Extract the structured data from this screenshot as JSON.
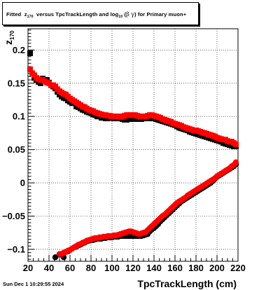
{
  "title": {
    "prefix": "Fitted",
    "sym": "z",
    "sub": "170",
    "middle": "versus TpcTrackLength and log",
    "logsub": "10",
    "paren_open": "(",
    "beta": "β",
    "gamma": "γ",
    "paren_close": ")",
    "suffix": "for Primary muon+"
  },
  "footer": "Sun Dec  1 10:29:55 2024",
  "axis_titles": {
    "x": "TpcTrackLength (cm)",
    "y_sym": "z",
    "y_sub": "170"
  },
  "chart_data": {
    "type": "scatter",
    "title": "Fitted z170 versus TpcTrackLength and log10(βγ) for Primary muon+",
    "xlabel": "TpcTrackLength (cm)",
    "ylabel": "z170",
    "xlim": [
      20,
      220
    ],
    "ylim": [
      -0.118,
      0.232
    ],
    "grid": true,
    "xticks": [
      20,
      40,
      60,
      80,
      100,
      120,
      140,
      160,
      180,
      200,
      220
    ],
    "xtick_labels": [
      "20",
      "40",
      "60",
      "80",
      "100",
      "120",
      "140",
      "160",
      "180",
      "200",
      "220"
    ],
    "yticks": [
      -0.1,
      -0.05,
      0,
      0.05,
      0.1,
      0.15,
      0.2
    ],
    "ytick_labels": [
      "−0.1",
      "−0.05",
      "0",
      "0.05",
      "0.1",
      "0.15",
      "0.2"
    ],
    "colors": {
      "black_series": "#000000",
      "red_series": "#ff0000"
    },
    "series": [
      {
        "marker": "square",
        "color": "#000000",
        "x": [
          22,
          24,
          26,
          28,
          30,
          32,
          34,
          36,
          38,
          40,
          42,
          44,
          46,
          48,
          50,
          52,
          54,
          56,
          58,
          60,
          62,
          64,
          66,
          68,
          70,
          72,
          74,
          76,
          78,
          80,
          82,
          84,
          86,
          88,
          90,
          92,
          94,
          96,
          98,
          100,
          102,
          104,
          106,
          108,
          110,
          112,
          114,
          116,
          118,
          120,
          122,
          124,
          126,
          128,
          130,
          132,
          134,
          136,
          138,
          140,
          142,
          144,
          146,
          148,
          150,
          152,
          154,
          156,
          158,
          160,
          162,
          164,
          166,
          168,
          170,
          172,
          174,
          176,
          178,
          180,
          182,
          184,
          186,
          188,
          190,
          192,
          194,
          196,
          198,
          200,
          202,
          204,
          206,
          208,
          210,
          212,
          214,
          216,
          218
        ],
        "y": [
          0.195,
          0.165,
          0.158,
          0.155,
          0.152,
          0.15,
          0.157,
          0.155,
          0.155,
          0.151,
          0.147,
          0.145,
          0.142,
          0.137,
          0.133,
          0.13,
          0.128,
          0.127,
          0.124,
          0.122,
          0.12,
          0.12,
          0.115,
          0.114,
          0.112,
          0.11,
          0.109,
          0.107,
          0.106,
          0.105,
          0.103,
          0.102,
          0.1,
          0.1,
          0.098,
          0.098,
          0.097,
          0.097,
          0.098,
          0.098,
          0.097,
          0.097,
          0.098,
          0.097,
          0.096,
          0.095,
          0.095,
          0.096,
          0.096,
          0.096,
          0.097,
          0.096,
          0.096,
          0.096,
          0.097,
          0.097,
          0.098,
          0.097,
          0.097,
          0.097,
          0.096,
          0.095,
          0.094,
          0.093,
          0.092,
          0.091,
          0.09,
          0.089,
          0.088,
          0.087,
          0.085,
          0.083,
          0.082,
          0.081,
          0.08,
          0.079,
          0.077,
          0.076,
          0.075,
          0.074,
          0.073,
          0.072,
          0.071,
          0.07,
          0.069,
          0.068,
          0.067,
          0.066,
          0.065,
          0.064,
          0.063,
          0.062,
          0.06,
          0.059,
          0.058,
          0.057,
          0.056,
          0.055,
          0.055
        ]
      },
      {
        "marker": "square",
        "color": "#ff0000",
        "x": [
          22,
          24,
          26,
          28,
          30,
          32,
          34,
          36,
          38,
          40,
          42,
          44,
          46,
          48,
          50,
          52,
          54,
          56,
          58,
          60,
          62,
          64,
          66,
          68,
          70,
          72,
          74,
          76,
          78,
          80,
          82,
          84,
          86,
          88,
          90,
          92,
          94,
          96,
          98,
          100,
          102,
          104,
          106,
          108,
          110,
          112,
          114,
          116,
          118,
          120,
          122,
          124,
          126,
          128,
          130,
          132,
          134,
          136,
          138,
          140,
          142,
          144,
          146,
          148,
          150,
          152,
          154,
          156,
          158,
          160,
          162,
          164,
          166,
          168,
          170,
          172,
          174,
          176,
          178,
          180,
          182,
          184,
          186,
          188,
          190,
          192,
          194,
          196,
          198,
          200,
          202,
          204,
          206,
          208,
          210,
          212,
          214,
          216,
          218
        ],
        "y": [
          0.171,
          0.165,
          0.162,
          0.158,
          0.156,
          0.155,
          0.155,
          0.153,
          0.151,
          0.15,
          0.147,
          0.147,
          0.145,
          0.141,
          0.138,
          0.136,
          0.134,
          0.133,
          0.13,
          0.127,
          0.125,
          0.123,
          0.121,
          0.119,
          0.117,
          0.115,
          0.114,
          0.112,
          0.11,
          0.109,
          0.108,
          0.106,
          0.105,
          0.104,
          0.103,
          0.102,
          0.102,
          0.101,
          0.101,
          0.1,
          0.1,
          0.1,
          0.1,
          0.099,
          0.1,
          0.101,
          0.102,
          0.102,
          0.102,
          0.102,
          0.102,
          0.101,
          0.1,
          0.1,
          0.1,
          0.1,
          0.101,
          0.102,
          0.102,
          0.101,
          0.1,
          0.099,
          0.098,
          0.096,
          0.095,
          0.094,
          0.093,
          0.092,
          0.09,
          0.089,
          0.088,
          0.087,
          0.086,
          0.084,
          0.083,
          0.082,
          0.081,
          0.08,
          0.079,
          0.079,
          0.078,
          0.077,
          0.076,
          0.075,
          0.074,
          0.073,
          0.072,
          0.071,
          0.07,
          0.068,
          0.067,
          0.066,
          0.065,
          0.065,
          0.063,
          0.062,
          0.062,
          0.06,
          0.058
        ]
      },
      {
        "marker": "circle",
        "color": "#000000",
        "x": [
          46,
          50,
          52,
          54,
          56,
          58,
          60,
          62,
          64,
          66,
          68,
          70,
          72,
          74,
          76,
          78,
          80,
          82,
          84,
          86,
          88,
          90,
          92,
          94,
          96,
          98,
          100,
          102,
          104,
          106,
          108,
          110,
          112,
          114,
          116,
          118,
          120,
          122,
          124,
          126,
          128,
          130,
          132,
          134,
          136,
          138,
          140,
          142,
          144,
          146,
          148,
          150,
          152,
          154,
          156,
          158,
          160,
          162,
          164,
          166,
          168,
          170,
          172,
          174,
          176,
          178,
          180,
          182,
          184,
          186,
          188,
          190,
          192,
          194,
          196,
          198,
          200,
          202,
          204,
          206,
          208,
          210,
          212,
          214,
          216,
          218
        ],
        "y": [
          -0.112,
          -0.108,
          -0.108,
          -0.112,
          -0.104,
          -0.103,
          -0.101,
          -0.099,
          -0.097,
          -0.096,
          -0.094,
          -0.093,
          -0.091,
          -0.09,
          -0.088,
          -0.087,
          -0.086,
          -0.086,
          -0.085,
          -0.084,
          -0.084,
          -0.084,
          -0.083,
          -0.083,
          -0.082,
          -0.082,
          -0.082,
          -0.081,
          -0.081,
          -0.081,
          -0.08,
          -0.08,
          -0.08,
          -0.08,
          -0.08,
          -0.08,
          -0.08,
          -0.08,
          -0.08,
          -0.08,
          -0.08,
          -0.079,
          -0.078,
          -0.077,
          -0.073,
          -0.07,
          -0.068,
          -0.065,
          -0.062,
          -0.058,
          -0.055,
          -0.052,
          -0.049,
          -0.046,
          -0.043,
          -0.04,
          -0.037,
          -0.034,
          -0.031,
          -0.028,
          -0.026,
          -0.024,
          -0.022,
          -0.02,
          -0.018,
          -0.016,
          -0.014,
          -0.012,
          -0.01,
          -0.008,
          -0.006,
          -0.004,
          -0.002,
          0.0,
          0.003,
          0.006,
          0.009,
          0.011,
          0.013,
          0.015,
          0.017,
          0.019,
          0.021,
          0.023,
          0.025,
          0.028
        ]
      },
      {
        "marker": "circle",
        "color": "#ff0000",
        "x": [
          50,
          52,
          54,
          56,
          58,
          60,
          62,
          64,
          66,
          68,
          70,
          72,
          74,
          76,
          78,
          80,
          82,
          84,
          86,
          88,
          90,
          92,
          94,
          96,
          98,
          100,
          102,
          104,
          106,
          108,
          110,
          112,
          114,
          116,
          118,
          120,
          122,
          124,
          126,
          128,
          130,
          132,
          134,
          136,
          138,
          140,
          142,
          144,
          146,
          148,
          150,
          152,
          154,
          156,
          158,
          160,
          162,
          164,
          166,
          168,
          170,
          172,
          174,
          176,
          178,
          180,
          182,
          184,
          186,
          188,
          190,
          192,
          194,
          196,
          198,
          200,
          202,
          204,
          206,
          208,
          210,
          212,
          214,
          216,
          218
        ],
        "y": [
          -0.107,
          -0.107,
          -0.105,
          -0.104,
          -0.102,
          -0.101,
          -0.099,
          -0.097,
          -0.095,
          -0.093,
          -0.092,
          -0.09,
          -0.089,
          -0.087,
          -0.086,
          -0.085,
          -0.084,
          -0.083,
          -0.083,
          -0.082,
          -0.082,
          -0.081,
          -0.081,
          -0.08,
          -0.08,
          -0.08,
          -0.079,
          -0.079,
          -0.078,
          -0.077,
          -0.076,
          -0.075,
          -0.074,
          -0.073,
          -0.073,
          -0.074,
          -0.075,
          -0.076,
          -0.077,
          -0.076,
          -0.075,
          -0.074,
          -0.071,
          -0.068,
          -0.065,
          -0.062,
          -0.059,
          -0.056,
          -0.053,
          -0.05,
          -0.048,
          -0.045,
          -0.042,
          -0.039,
          -0.036,
          -0.033,
          -0.03,
          -0.028,
          -0.026,
          -0.024,
          -0.022,
          -0.019,
          -0.017,
          -0.015,
          -0.013,
          -0.011,
          -0.009,
          -0.007,
          -0.005,
          -0.003,
          -0.001,
          0.001,
          0.003,
          0.005,
          0.007,
          0.01,
          0.012,
          0.014,
          0.016,
          0.018,
          0.02,
          0.022,
          0.025,
          0.027,
          0.031
        ]
      }
    ]
  }
}
